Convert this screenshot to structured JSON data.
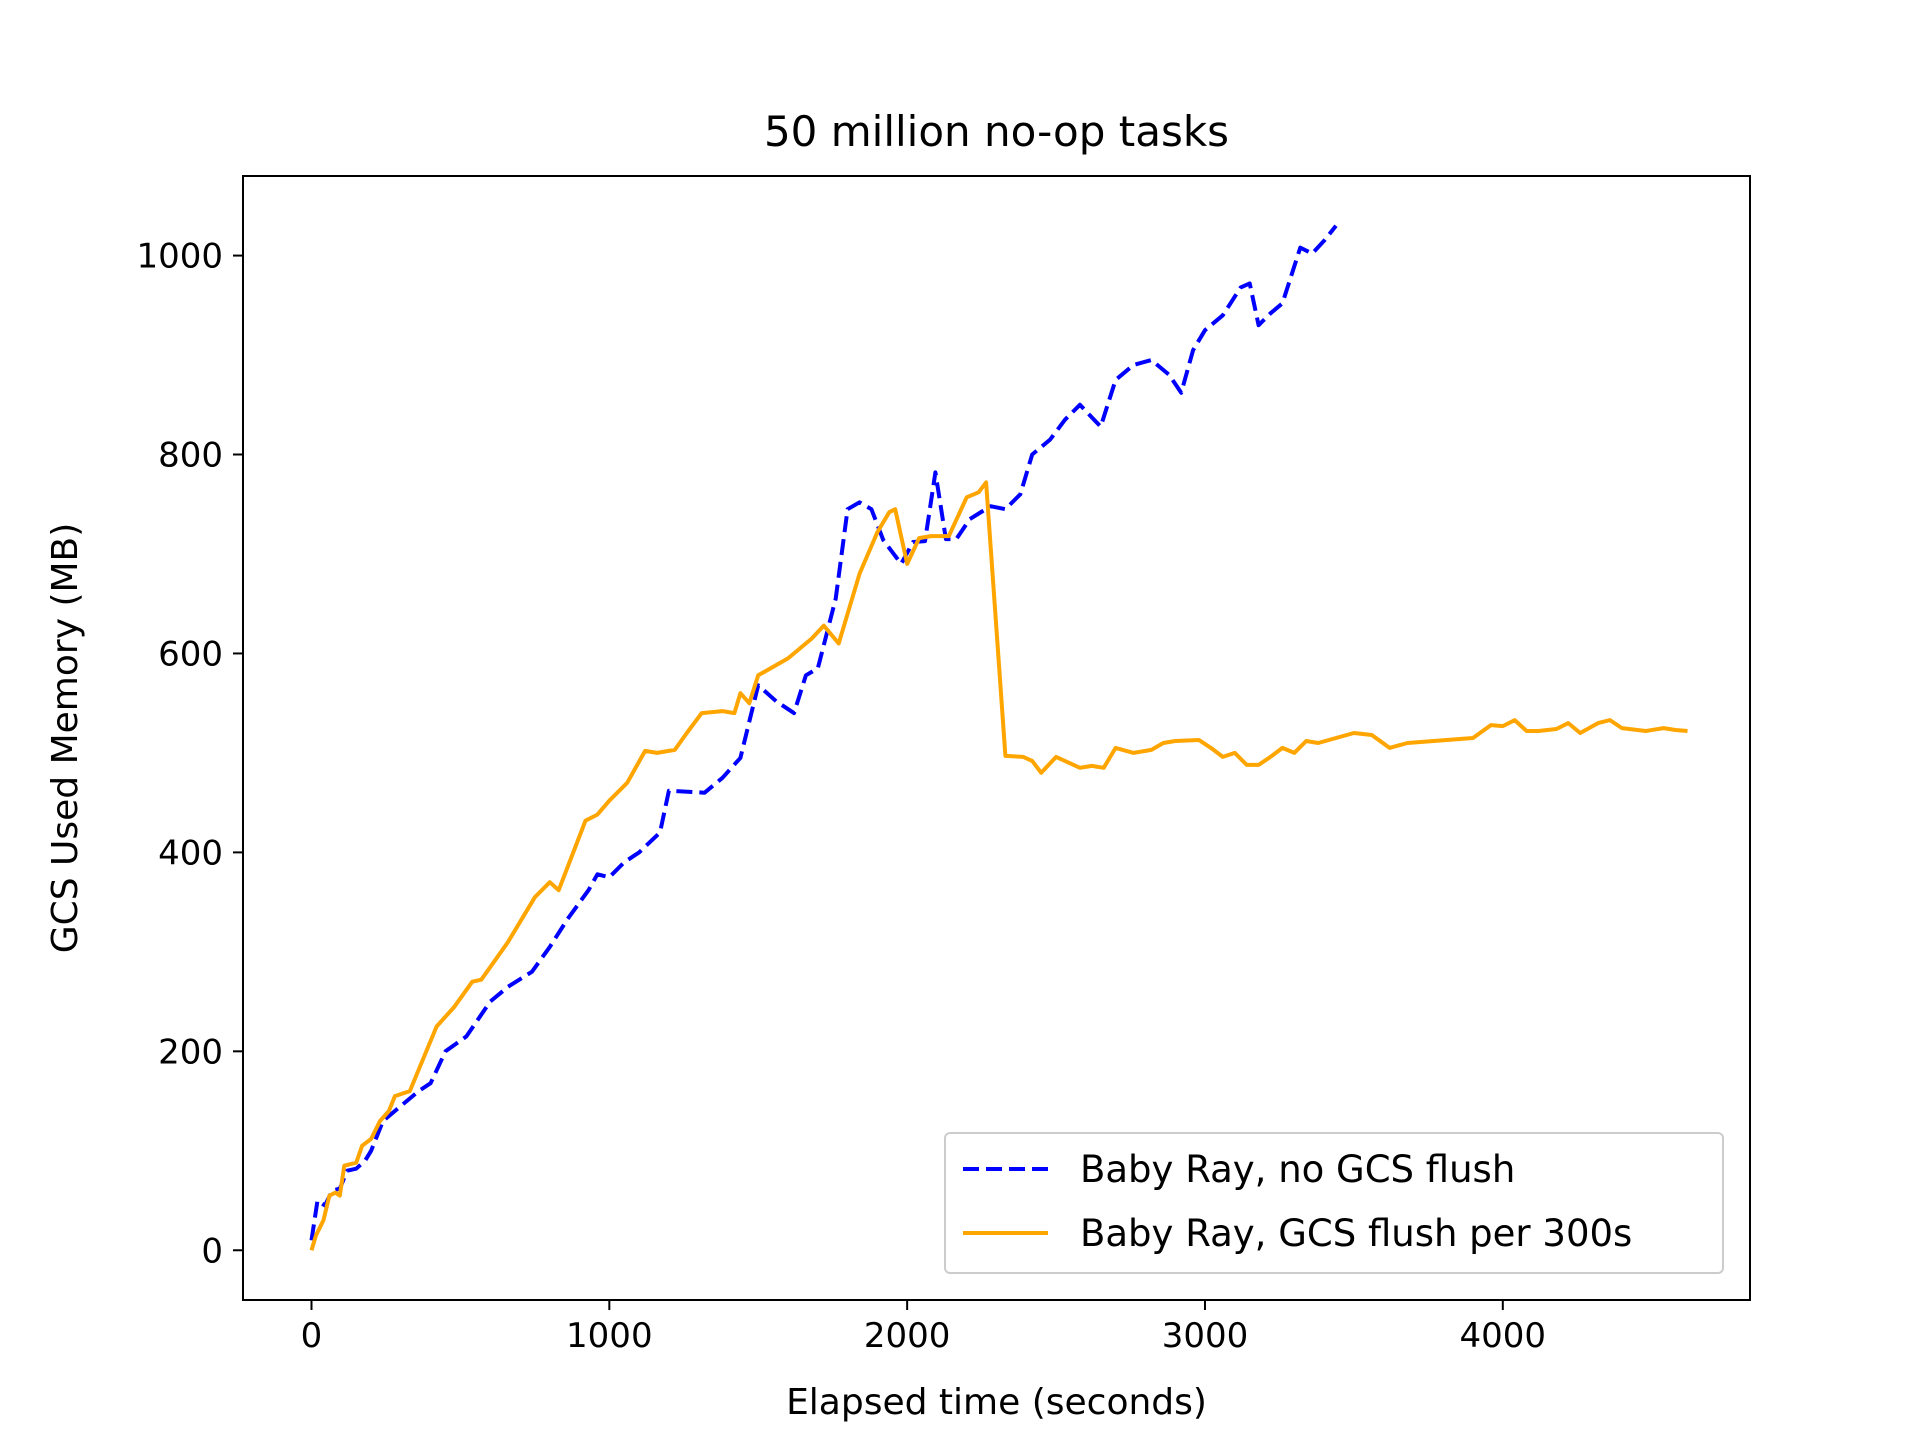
{
  "chart_data": {
    "type": "line",
    "title": "50 million no-op tasks",
    "xlabel": "Elapsed time (seconds)",
    "ylabel": "GCS Used Memory (MB)",
    "xlim": [
      -230,
      4830
    ],
    "ylim": [
      -50,
      1080
    ],
    "xticks": [
      0,
      1000,
      2000,
      3000,
      4000
    ],
    "yticks": [
      0,
      200,
      400,
      600,
      800,
      1000
    ],
    "grid": false,
    "legend_position": "lower-right",
    "series": [
      {
        "name": "Baby Ray, no GCS flush",
        "color": "#0000ff",
        "style": "dashed",
        "points": [
          [
            0,
            10
          ],
          [
            20,
            50
          ],
          [
            45,
            45
          ],
          [
            70,
            60
          ],
          [
            95,
            62
          ],
          [
            120,
            80
          ],
          [
            150,
            82
          ],
          [
            180,
            90
          ],
          [
            200,
            100
          ],
          [
            240,
            130
          ],
          [
            300,
            145
          ],
          [
            360,
            160
          ],
          [
            400,
            168
          ],
          [
            450,
            200
          ],
          [
            520,
            215
          ],
          [
            600,
            250
          ],
          [
            660,
            265
          ],
          [
            740,
            280
          ],
          [
            800,
            305
          ],
          [
            860,
            333
          ],
          [
            930,
            362
          ],
          [
            960,
            378
          ],
          [
            1000,
            375
          ],
          [
            1050,
            390
          ],
          [
            1100,
            400
          ],
          [
            1170,
            420
          ],
          [
            1200,
            462
          ],
          [
            1320,
            460
          ],
          [
            1380,
            475
          ],
          [
            1440,
            495
          ],
          [
            1500,
            568
          ],
          [
            1560,
            552
          ],
          [
            1620,
            540
          ],
          [
            1660,
            578
          ],
          [
            1700,
            585
          ],
          [
            1760,
            655
          ],
          [
            1800,
            745
          ],
          [
            1840,
            752
          ],
          [
            1880,
            745
          ],
          [
            1920,
            714
          ],
          [
            1980,
            690
          ],
          [
            2020,
            712
          ],
          [
            2060,
            713
          ],
          [
            2095,
            782
          ],
          [
            2130,
            715
          ],
          [
            2165,
            715
          ],
          [
            2210,
            735
          ],
          [
            2280,
            748
          ],
          [
            2330,
            745
          ],
          [
            2380,
            760
          ],
          [
            2420,
            800
          ],
          [
            2480,
            815
          ],
          [
            2530,
            835
          ],
          [
            2580,
            850
          ],
          [
            2650,
            828
          ],
          [
            2700,
            875
          ],
          [
            2760,
            890
          ],
          [
            2820,
            895
          ],
          [
            2880,
            880
          ],
          [
            2920,
            862
          ],
          [
            2960,
            905
          ],
          [
            3000,
            925
          ],
          [
            3060,
            940
          ],
          [
            3120,
            968
          ],
          [
            3150,
            972
          ],
          [
            3180,
            930
          ],
          [
            3220,
            942
          ],
          [
            3260,
            952
          ],
          [
            3320,
            1008
          ],
          [
            3360,
            1002
          ],
          [
            3400,
            1015
          ],
          [
            3440,
            1030
          ]
        ]
      },
      {
        "name": "Baby Ray, GCS flush per 300s",
        "color": "#ffa500",
        "style": "solid",
        "points": [
          [
            0,
            0
          ],
          [
            15,
            15
          ],
          [
            40,
            30
          ],
          [
            60,
            55
          ],
          [
            80,
            58
          ],
          [
            95,
            55
          ],
          [
            110,
            85
          ],
          [
            150,
            88
          ],
          [
            170,
            105
          ],
          [
            200,
            112
          ],
          [
            230,
            130
          ],
          [
            260,
            140
          ],
          [
            280,
            155
          ],
          [
            330,
            160
          ],
          [
            420,
            225
          ],
          [
            480,
            245
          ],
          [
            540,
            270
          ],
          [
            570,
            272
          ],
          [
            660,
            310
          ],
          [
            750,
            355
          ],
          [
            800,
            370
          ],
          [
            830,
            362
          ],
          [
            920,
            432
          ],
          [
            960,
            438
          ],
          [
            1000,
            452
          ],
          [
            1060,
            470
          ],
          [
            1120,
            502
          ],
          [
            1160,
            500
          ],
          [
            1220,
            503
          ],
          [
            1260,
            520
          ],
          [
            1310,
            540
          ],
          [
            1380,
            542
          ],
          [
            1420,
            540
          ],
          [
            1440,
            560
          ],
          [
            1470,
            550
          ],
          [
            1500,
            578
          ],
          [
            1600,
            595
          ],
          [
            1680,
            615
          ],
          [
            1720,
            628
          ],
          [
            1770,
            610
          ],
          [
            1840,
            680
          ],
          [
            1900,
            722
          ],
          [
            1940,
            742
          ],
          [
            1960,
            745
          ],
          [
            2000,
            690
          ],
          [
            2040,
            716
          ],
          [
            2080,
            718
          ],
          [
            2140,
            718
          ],
          [
            2200,
            757
          ],
          [
            2240,
            762
          ],
          [
            2265,
            772
          ],
          [
            2330,
            497
          ],
          [
            2390,
            496
          ],
          [
            2420,
            492
          ],
          [
            2450,
            480
          ],
          [
            2500,
            496
          ],
          [
            2580,
            485
          ],
          [
            2620,
            487
          ],
          [
            2660,
            485
          ],
          [
            2700,
            505
          ],
          [
            2760,
            500
          ],
          [
            2820,
            503
          ],
          [
            2860,
            510
          ],
          [
            2900,
            512
          ],
          [
            2980,
            513
          ],
          [
            3020,
            505
          ],
          [
            3060,
            496
          ],
          [
            3100,
            500
          ],
          [
            3140,
            488
          ],
          [
            3180,
            488
          ],
          [
            3220,
            496
          ],
          [
            3260,
            505
          ],
          [
            3300,
            500
          ],
          [
            3340,
            512
          ],
          [
            3380,
            510
          ],
          [
            3440,
            515
          ],
          [
            3500,
            520
          ],
          [
            3560,
            518
          ],
          [
            3620,
            505
          ],
          [
            3680,
            510
          ],
          [
            3900,
            515
          ],
          [
            3960,
            528
          ],
          [
            4000,
            527
          ],
          [
            4040,
            533
          ],
          [
            4080,
            522
          ],
          [
            4120,
            522
          ],
          [
            4180,
            524
          ],
          [
            4220,
            530
          ],
          [
            4260,
            520
          ],
          [
            4320,
            530
          ],
          [
            4360,
            533
          ],
          [
            4400,
            525
          ],
          [
            4480,
            522
          ],
          [
            4540,
            525
          ],
          [
            4580,
            523
          ],
          [
            4620,
            522
          ]
        ]
      }
    ]
  }
}
